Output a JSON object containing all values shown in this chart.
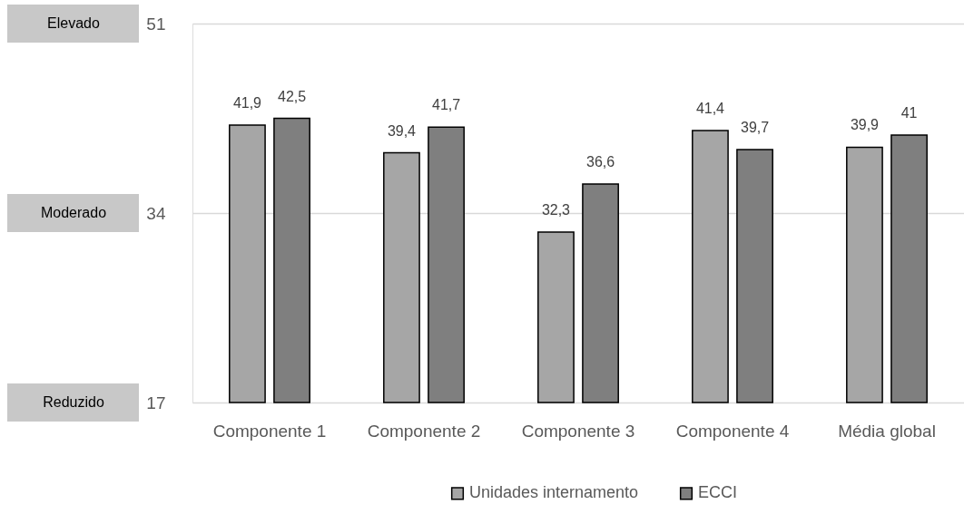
{
  "chart_data": {
    "type": "bar",
    "categories": [
      "Componente 1",
      "Componente 2",
      "Componente 3",
      "Componente 4",
      "Média global"
    ],
    "series": [
      {
        "name": "Unidades internamento",
        "color": "#a6a6a6",
        "values": [
          41.9,
          39.4,
          32.3,
          41.4,
          39.9
        ],
        "value_labels": [
          "41,9",
          "39,4",
          "32,3",
          "41,4",
          "39,9"
        ]
      },
      {
        "name": "ECCI",
        "color": "#7f7f7f",
        "values": [
          42.5,
          41.7,
          36.6,
          39.7,
          41
        ],
        "value_labels": [
          "42,5",
          "41,7",
          "36,6",
          "39,7",
          "41"
        ]
      }
    ],
    "ylim": [
      17,
      51
    ],
    "yticks": [
      17,
      34,
      51
    ],
    "grid": "y",
    "legend": "bottom",
    "annotations": [
      "Elevado",
      "Moderado",
      "Reduzido"
    ]
  }
}
